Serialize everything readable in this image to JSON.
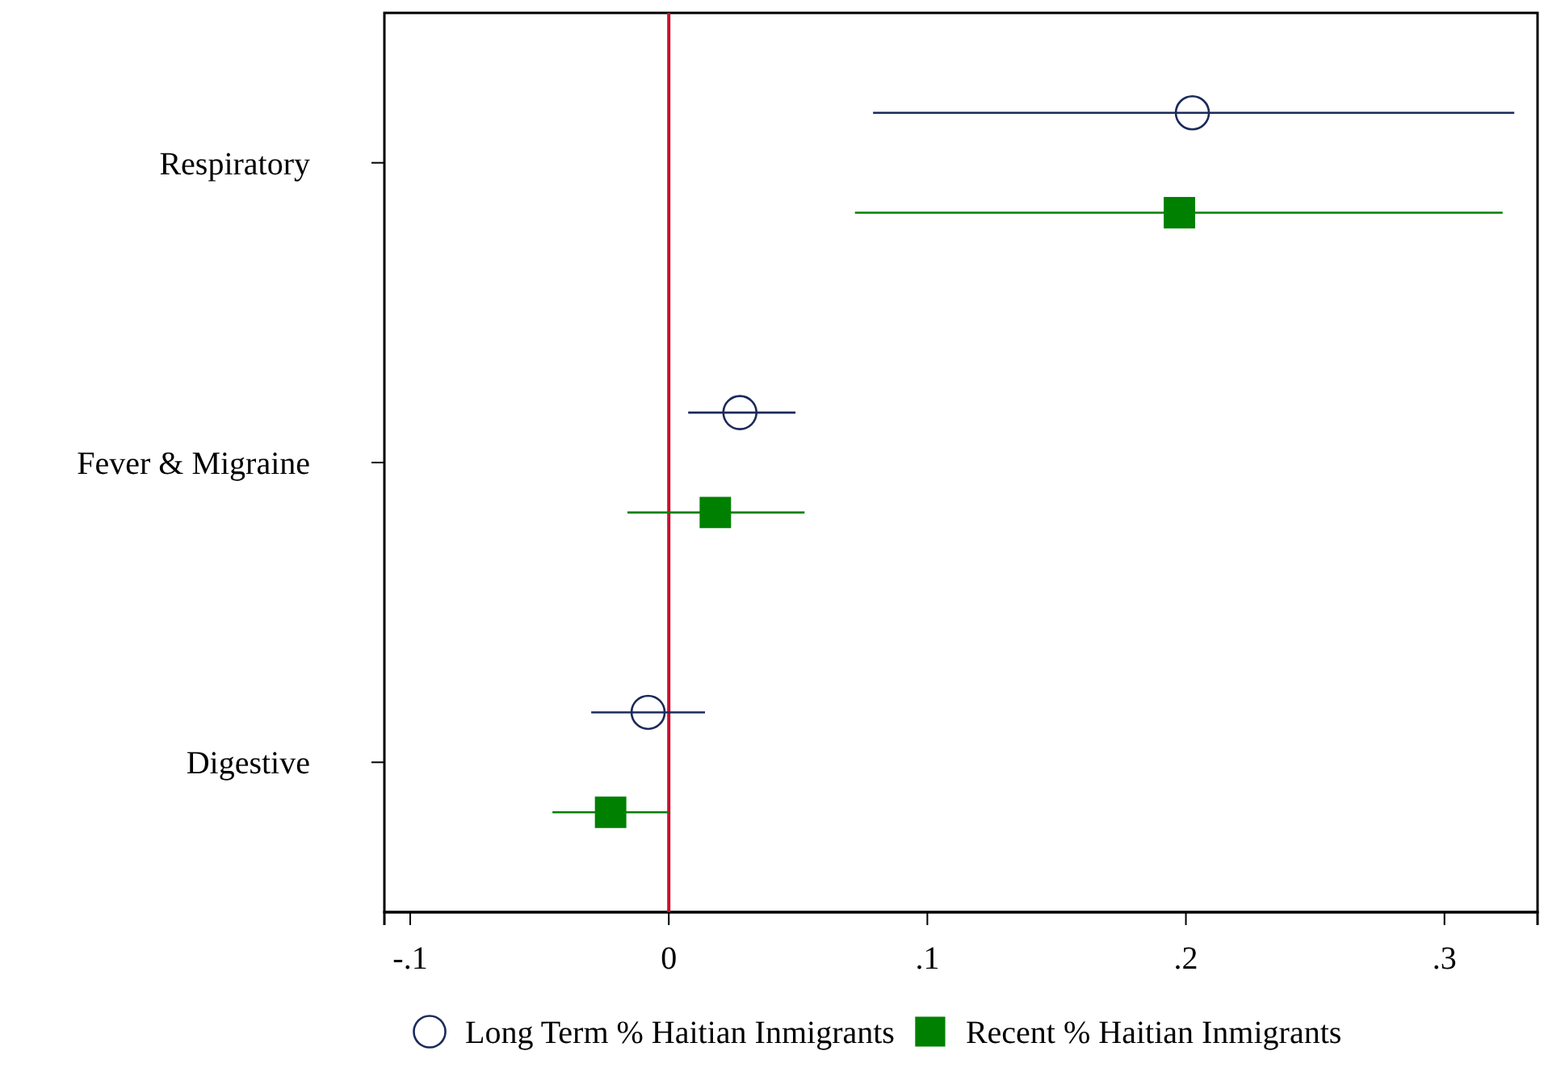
{
  "chart_data": {
    "type": "scatter",
    "orientation": "horizontal",
    "categories": [
      "Respiratory",
      "Fever & Migraine",
      "Digestive"
    ],
    "series": [
      {
        "name": "Long Term % Haitian Inmigrants",
        "color": "#1a2a5a",
        "marker": "circle",
        "values": [
          0.2025,
          0.0275,
          -0.008
        ],
        "errors": [
          [
            0.079,
            0.327
          ],
          [
            0.0075,
            0.049
          ],
          [
            -0.03,
            0.014
          ]
        ]
      },
      {
        "name": "Recent % Haitian Inmigrants",
        "color": "#008000",
        "marker": "square",
        "values": [
          0.1975,
          0.018,
          -0.0225
        ],
        "errors": [
          [
            0.072,
            0.3225
          ],
          [
            -0.016,
            0.0525
          ],
          [
            -0.045,
            0
          ]
        ]
      }
    ],
    "xlim": [
      -0.11,
      0.336
    ],
    "xticks": [
      {
        "value": -0.1,
        "label": "-.1"
      },
      {
        "value": 0,
        "label": "0"
      },
      {
        "value": 0.1,
        "label": ".1"
      },
      {
        "value": 0.2,
        "label": ".2"
      },
      {
        "value": 0.3,
        "label": ".3"
      }
    ],
    "ref_lines": [
      {
        "axis": "x",
        "value": 0,
        "color": "#c8102e"
      }
    ],
    "legend": "bottom",
    "grid": false
  }
}
